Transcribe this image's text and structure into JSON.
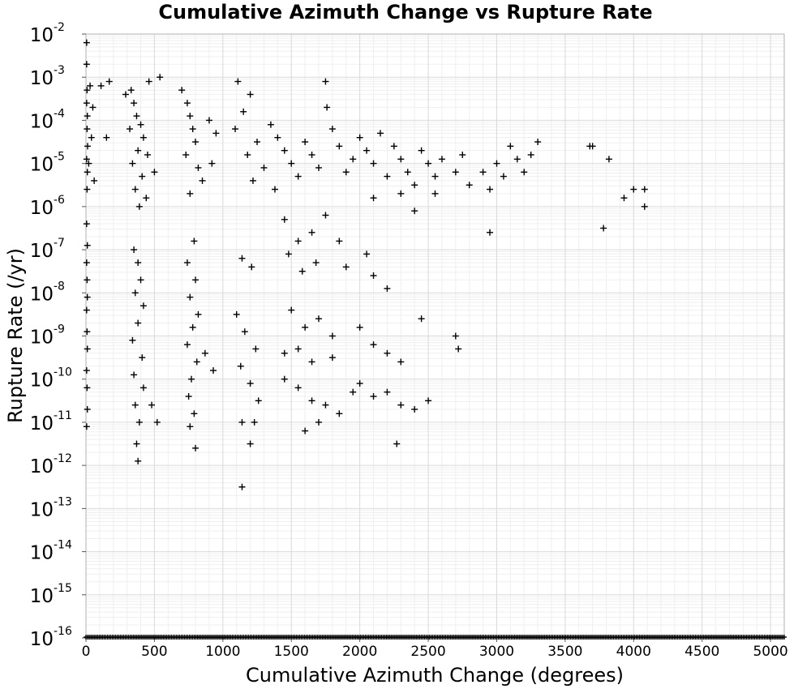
{
  "chart_data": {
    "type": "scatter",
    "title": "Cumulative Azimuth Change vs Rupture Rate",
    "xlabel": "Cumulative Azimuth Change (degrees)",
    "ylabel": "Rupture Rate (/yr)",
    "xlim": [
      0,
      5100
    ],
    "ylim_log10": [
      -16,
      -2
    ],
    "yscale": "log",
    "grid": true,
    "marker": "plus",
    "marker_color": "#000000",
    "x_ticks": [
      "0",
      "500",
      "1000",
      "1500",
      "2000",
      "2500",
      "3000",
      "3500",
      "4000",
      "4500",
      "5000"
    ],
    "y_ticks": [
      {
        "base": "10",
        "exp": "-2"
      },
      {
        "base": "10",
        "exp": "-3"
      },
      {
        "base": "10",
        "exp": "-4"
      },
      {
        "base": "10",
        "exp": "-5"
      },
      {
        "base": "10",
        "exp": "-6"
      },
      {
        "base": "10",
        "exp": "-7"
      },
      {
        "base": "10",
        "exp": "-8"
      },
      {
        "base": "10",
        "exp": "-9"
      },
      {
        "base": "10",
        "exp": "-10"
      },
      {
        "base": "10",
        "exp": "-11"
      },
      {
        "base": "10",
        "exp": "-12"
      },
      {
        "base": "10",
        "exp": "-13"
      },
      {
        "base": "10",
        "exp": "-14"
      },
      {
        "base": "10",
        "exp": "-15"
      },
      {
        "base": "10",
        "exp": "-16"
      }
    ],
    "points_log10": [
      [
        5,
        -2.2
      ],
      [
        5,
        -2.7
      ],
      [
        8,
        -3.3
      ],
      [
        5,
        -3.6
      ],
      [
        10,
        -3.9
      ],
      [
        8,
        -4.2
      ],
      [
        12,
        -4.6
      ],
      [
        5,
        -4.9
      ],
      [
        10,
        -5.2
      ],
      [
        8,
        -5.6
      ],
      [
        5,
        -6.4
      ],
      [
        10,
        -6.9
      ],
      [
        5,
        -7.3
      ],
      [
        8,
        -7.7
      ],
      [
        10,
        -8.1
      ],
      [
        5,
        -8.4
      ],
      [
        8,
        -8.9
      ],
      [
        10,
        -9.3
      ],
      [
        5,
        -9.8
      ],
      [
        8,
        -10.2
      ],
      [
        10,
        -10.7
      ],
      [
        5,
        -11.1
      ],
      [
        30,
        -3.2
      ],
      [
        50,
        -3.7
      ],
      [
        40,
        -4.4
      ],
      [
        20,
        -5.0
      ],
      [
        60,
        -5.4
      ],
      [
        110,
        -3.2
      ],
      [
        170,
        -3.1
      ],
      [
        150,
        -4.4
      ],
      [
        290,
        -3.4
      ],
      [
        330,
        -3.3
      ],
      [
        350,
        -3.6
      ],
      [
        370,
        -3.9
      ],
      [
        400,
        -4.1
      ],
      [
        420,
        -4.4
      ],
      [
        380,
        -4.7
      ],
      [
        340,
        -5.0
      ],
      [
        410,
        -5.3
      ],
      [
        360,
        -5.6
      ],
      [
        440,
        -5.8
      ],
      [
        390,
        -6.0
      ],
      [
        460,
        -3.1
      ],
      [
        320,
        -4.2
      ],
      [
        350,
        -7.0
      ],
      [
        380,
        -7.3
      ],
      [
        400,
        -7.7
      ],
      [
        360,
        -8.0
      ],
      [
        420,
        -8.3
      ],
      [
        380,
        -8.7
      ],
      [
        340,
        -9.1
      ],
      [
        410,
        -9.5
      ],
      [
        350,
        -9.9
      ],
      [
        420,
        -10.2
      ],
      [
        360,
        -10.6
      ],
      [
        390,
        -11.0
      ],
      [
        370,
        -11.5
      ],
      [
        380,
        -11.9
      ],
      [
        480,
        -10.6
      ],
      [
        520,
        -11.0
      ],
      [
        450,
        -4.8
      ],
      [
        500,
        -5.2
      ],
      [
        540,
        -3.0
      ],
      [
        700,
        -3.3
      ],
      [
        740,
        -3.6
      ],
      [
        760,
        -3.9
      ],
      [
        780,
        -4.2
      ],
      [
        800,
        -4.5
      ],
      [
        730,
        -4.8
      ],
      [
        820,
        -5.1
      ],
      [
        850,
        -5.4
      ],
      [
        760,
        -5.7
      ],
      [
        900,
        -4.0
      ],
      [
        950,
        -4.3
      ],
      [
        920,
        -5.0
      ],
      [
        790,
        -6.8
      ],
      [
        740,
        -7.3
      ],
      [
        800,
        -7.7
      ],
      [
        760,
        -8.1
      ],
      [
        820,
        -8.5
      ],
      [
        780,
        -8.8
      ],
      [
        740,
        -9.2
      ],
      [
        810,
        -9.6
      ],
      [
        770,
        -10.0
      ],
      [
        750,
        -10.4
      ],
      [
        790,
        -10.8
      ],
      [
        760,
        -11.1
      ],
      [
        800,
        -11.6
      ],
      [
        870,
        -9.4
      ],
      [
        930,
        -9.8
      ],
      [
        1110,
        -3.1
      ],
      [
        1200,
        -3.4
      ],
      [
        1150,
        -3.8
      ],
      [
        1090,
        -4.2
      ],
      [
        1250,
        -4.5
      ],
      [
        1180,
        -4.8
      ],
      [
        1300,
        -5.1
      ],
      [
        1220,
        -5.4
      ],
      [
        1140,
        -7.2
      ],
      [
        1210,
        -7.4
      ],
      [
        1100,
        -8.5
      ],
      [
        1160,
        -8.9
      ],
      [
        1240,
        -9.3
      ],
      [
        1130,
        -9.7
      ],
      [
        1200,
        -10.1
      ],
      [
        1260,
        -10.5
      ],
      [
        1140,
        -11.0
      ],
      [
        1230,
        -11.0
      ],
      [
        1200,
        -11.5
      ],
      [
        1140,
        -12.5
      ],
      [
        1350,
        -4.1
      ],
      [
        1400,
        -4.4
      ],
      [
        1450,
        -4.7
      ],
      [
        1500,
        -5.0
      ],
      [
        1550,
        -5.3
      ],
      [
        1380,
        -5.6
      ],
      [
        1600,
        -4.5
      ],
      [
        1650,
        -4.8
      ],
      [
        1700,
        -5.1
      ],
      [
        1750,
        -3.1
      ],
      [
        1760,
        -3.7
      ],
      [
        1800,
        -4.2
      ],
      [
        1850,
        -4.6
      ],
      [
        1900,
        -5.2
      ],
      [
        1950,
        -4.9
      ],
      [
        1450,
        -6.3
      ],
      [
        1550,
        -6.8
      ],
      [
        1650,
        -6.6
      ],
      [
        1750,
        -6.2
      ],
      [
        1850,
        -6.8
      ],
      [
        1480,
        -7.1
      ],
      [
        1580,
        -7.5
      ],
      [
        1680,
        -7.3
      ],
      [
        1500,
        -8.4
      ],
      [
        1600,
        -8.8
      ],
      [
        1700,
        -8.6
      ],
      [
        1800,
        -9.0
      ],
      [
        1900,
        -7.4
      ],
      [
        1450,
        -9.4
      ],
      [
        1550,
        -9.3
      ],
      [
        1650,
        -9.6
      ],
      [
        1800,
        -9.5
      ],
      [
        1450,
        -10.0
      ],
      [
        1550,
        -10.2
      ],
      [
        1650,
        -10.5
      ],
      [
        1750,
        -10.6
      ],
      [
        1850,
        -10.8
      ],
      [
        1950,
        -10.3
      ],
      [
        1600,
        -11.2
      ],
      [
        1700,
        -11.0
      ],
      [
        2000,
        -4.4
      ],
      [
        2050,
        -4.7
      ],
      [
        2100,
        -5.0
      ],
      [
        2150,
        -4.3
      ],
      [
        2200,
        -5.3
      ],
      [
        2250,
        -4.6
      ],
      [
        2300,
        -4.9
      ],
      [
        2350,
        -5.2
      ],
      [
        2400,
        -5.5
      ],
      [
        2050,
        -7.1
      ],
      [
        2100,
        -7.6
      ],
      [
        2200,
        -7.9
      ],
      [
        2000,
        -8.8
      ],
      [
        2100,
        -9.2
      ],
      [
        2200,
        -9.4
      ],
      [
        2300,
        -9.6
      ],
      [
        2000,
        -10.1
      ],
      [
        2100,
        -10.4
      ],
      [
        2200,
        -10.3
      ],
      [
        2300,
        -10.6
      ],
      [
        2400,
        -10.7
      ],
      [
        2500,
        -10.5
      ],
      [
        2270,
        -11.5
      ],
      [
        2450,
        -4.7
      ],
      [
        2500,
        -5.0
      ],
      [
        2550,
        -5.3
      ],
      [
        2600,
        -4.9
      ],
      [
        2700,
        -5.2
      ],
      [
        2750,
        -4.8
      ],
      [
        2800,
        -5.5
      ],
      [
        2900,
        -5.2
      ],
      [
        2950,
        -5.6
      ],
      [
        3000,
        -5.0
      ],
      [
        3050,
        -5.3
      ],
      [
        3100,
        -4.6
      ],
      [
        3150,
        -4.9
      ],
      [
        3200,
        -5.2
      ],
      [
        3250,
        -4.8
      ],
      [
        3300,
        -4.5
      ],
      [
        2950,
        -6.6
      ],
      [
        2450,
        -8.6
      ],
      [
        2700,
        -9.0
      ],
      [
        2720,
        -9.3
      ],
      [
        3680,
        -4.6
      ],
      [
        3700,
        -4.6
      ],
      [
        3820,
        -4.9
      ],
      [
        3780,
        -6.5
      ],
      [
        3930,
        -5.8
      ],
      [
        4000,
        -5.6
      ],
      [
        4080,
        -5.6
      ],
      [
        4080,
        -6.0
      ],
      [
        2100,
        -5.8
      ],
      [
        2300,
        -5.7
      ],
      [
        2400,
        -6.1
      ],
      [
        2550,
        -5.7
      ]
    ],
    "baseline_points_x": [
      0,
      5100
    ]
  }
}
